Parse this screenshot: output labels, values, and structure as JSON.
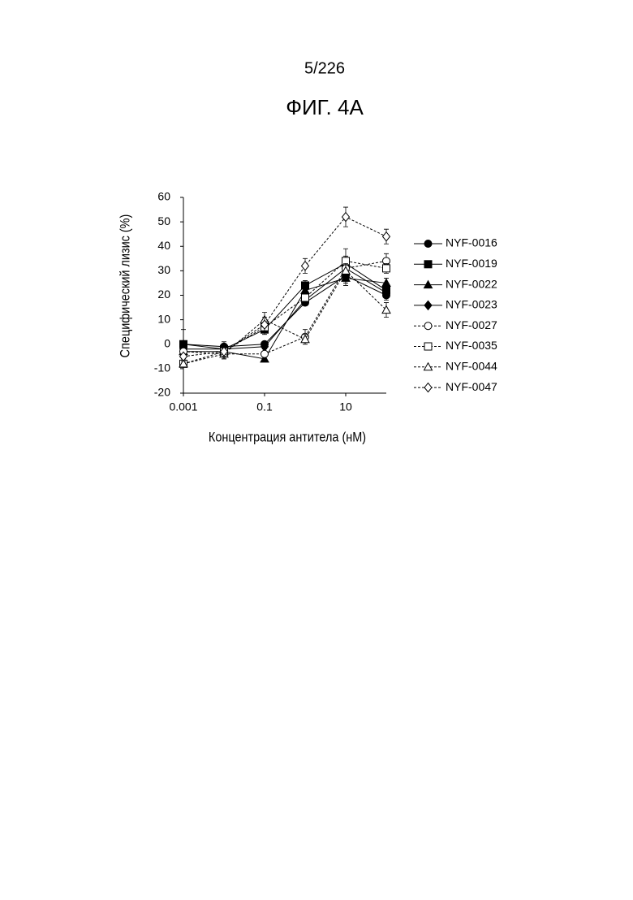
{
  "chart_data": {
    "type": "line",
    "page_number": "5/226",
    "title": "ФИГ. 4А",
    "x_label": "Концентрация антитела (нМ)",
    "y_label": "Специфический лизис (%)",
    "x": [
      0.001,
      0.01,
      0.1,
      1,
      10,
      100
    ],
    "xlim": [
      0.001,
      100
    ],
    "xticks": [
      0.001,
      0.1,
      10
    ],
    "xscale": "log",
    "ylim": [
      -20,
      60
    ],
    "yticks": [
      -20,
      -10,
      0,
      10,
      20,
      30,
      40,
      50,
      60
    ],
    "legend": "right",
    "series": [
      {
        "name": "NYF-0016",
        "color": "#000000",
        "marker": "circle",
        "filled": true,
        "dashed": false,
        "values": [
          0,
          -1,
          0,
          17,
          28,
          20
        ],
        "errors": [
          1,
          2,
          1,
          1,
          3,
          2
        ]
      },
      {
        "name": "NYF-0019",
        "color": "#000000",
        "marker": "square",
        "filled": true,
        "dashed": false,
        "values": [
          0,
          -2,
          6,
          24,
          33,
          22
        ],
        "errors": [
          6,
          2,
          2,
          2,
          3,
          2
        ]
      },
      {
        "name": "NYF-0022",
        "color": "#000000",
        "marker": "triangle",
        "filled": true,
        "dashed": false,
        "values": [
          -3,
          -3,
          -6,
          22,
          27,
          25
        ],
        "errors": [
          1,
          2,
          1,
          2,
          3,
          2
        ]
      },
      {
        "name": "NYF-0023",
        "color": "#000000",
        "marker": "diamond",
        "filled": true,
        "dashed": false,
        "values": [
          -2,
          -2,
          -1,
          18,
          31,
          21
        ],
        "errors": [
          1,
          2,
          2,
          2,
          3,
          2
        ]
      },
      {
        "name": "NYF-0027",
        "color": "#000000",
        "marker": "circle",
        "filled": false,
        "dashed": true,
        "values": [
          -3,
          -4,
          -4,
          3,
          31,
          34
        ],
        "errors": [
          1,
          2,
          2,
          3,
          3,
          3
        ]
      },
      {
        "name": "NYF-0035",
        "color": "#000000",
        "marker": "square",
        "filled": false,
        "dashed": true,
        "values": [
          -8,
          -3,
          7,
          19,
          34,
          31
        ],
        "errors": [
          1,
          2,
          2,
          2,
          5,
          2
        ]
      },
      {
        "name": "NYF-0044",
        "color": "#000000",
        "marker": "triangle",
        "filled": false,
        "dashed": true,
        "values": [
          -8,
          -4,
          10,
          2,
          30,
          14
        ],
        "errors": [
          1,
          2,
          3,
          2,
          3,
          3
        ]
      },
      {
        "name": "NYF-0047",
        "color": "#000000",
        "marker": "diamond",
        "filled": false,
        "dashed": true,
        "values": [
          -5,
          -3,
          8,
          32,
          52,
          44
        ],
        "errors": [
          1,
          2,
          3,
          3,
          4,
          3
        ]
      }
    ]
  }
}
